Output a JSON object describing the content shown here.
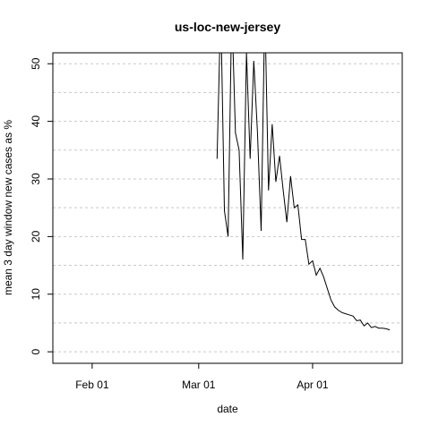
{
  "chart_data": {
    "type": "line",
    "title": "us-loc-new-jersey",
    "xlabel": "date",
    "ylabel": "mean  3  day window new cases as %",
    "x": [
      66,
      67,
      68,
      69,
      70,
      71,
      72,
      73,
      74,
      75,
      76,
      77,
      78,
      79,
      80,
      81,
      82,
      83,
      84,
      85,
      86,
      87,
      88,
      89,
      90,
      91,
      92,
      93,
      94,
      95,
      96,
      97,
      98,
      99,
      100,
      101,
      102,
      103,
      104,
      105,
      106,
      107,
      108,
      109,
      110,
      111,
      112,
      113
    ],
    "values": [
      33.5,
      60,
      24.5,
      20,
      60,
      38,
      35,
      16,
      52,
      33.5,
      50.5,
      38,
      21,
      60,
      28,
      39.5,
      29.5,
      34,
      28,
      22.5,
      30.5,
      25,
      25.5,
      19.5,
      19.5,
      15.2,
      15.8,
      13.3,
      14.5,
      13,
      11,
      9,
      7.8,
      7.2,
      6.8,
      6.6,
      6.4,
      6.2,
      5.4,
      5.5,
      4.5,
      5,
      4.2,
      4.4,
      4.1,
      4.1,
      4.0,
      3.8
    ],
    "color": "#000000",
    "xlim": [
      21.3,
      116.4
    ],
    "xticks": [
      {
        "value": 32,
        "label": "Feb 01"
      },
      {
        "value": 61,
        "label": "Mar 01"
      },
      {
        "value": 92,
        "label": "Apr 01"
      }
    ],
    "ylim": [
      -2,
      51.9
    ],
    "yticks": [
      0,
      10,
      20,
      30,
      40,
      50
    ],
    "grid": true
  }
}
